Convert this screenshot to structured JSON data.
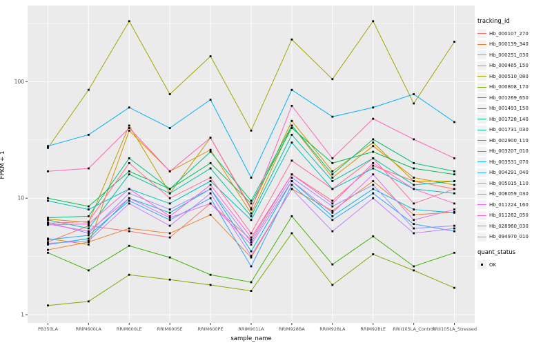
{
  "chart_data": {
    "type": "line",
    "title": "",
    "xlabel": "sample_name",
    "ylabel": "FPKM + 1",
    "y_scale": "log10",
    "ylim": [
      0.85,
      450
    ],
    "yticks": [
      1,
      10,
      100
    ],
    "minor_gridlines": [
      3.162,
      31.62,
      316.2
    ],
    "panel_bg": "#EBEBEB",
    "grid_color": "#FFFFFF",
    "point_color": "#000000",
    "legend_title": "tracking_id",
    "quant_status_title": "quant_status",
    "quant_status_items": [
      "OK"
    ],
    "categories": [
      "PB350LA",
      "RRIM600LA",
      "RRIM600LE",
      "RRIM600SE",
      "RRIM600PE",
      "RRIM901LA",
      "RRIM928BA",
      "RRIM928LA",
      "RRIM928LE",
      "RRII105LA_Control",
      "RRII105LA_Stressed"
    ],
    "series": [
      {
        "name": "Hb_000107_270",
        "color": "#F8766D",
        "values": [
          4.2,
          5.8,
          5.2,
          4.6,
          9.0,
          4.4,
          16,
          9.5,
          19,
          14,
          12
        ]
      },
      {
        "name": "Hb_000139_340",
        "color": "#EA8331",
        "values": [
          3.6,
          4.2,
          5.5,
          5.0,
          7.2,
          3.1,
          12,
          7.8,
          14,
          7.2,
          7.6
        ]
      },
      {
        "name": "Hb_000251_030",
        "color": "#D89000",
        "values": [
          4.5,
          4.0,
          38,
          17,
          26,
          7.4,
          42,
          15,
          28,
          15,
          13
        ]
      },
      {
        "name": "Hb_000465_150",
        "color": "#C09B00",
        "values": [
          6.6,
          6.2,
          42,
          11,
          33,
          8.2,
          46,
          17,
          30,
          14,
          14
        ]
      },
      {
        "name": "Hb_000510_080",
        "color": "#A3A500",
        "values": [
          27,
          85,
          330,
          78,
          165,
          38,
          230,
          105,
          330,
          65,
          220
        ]
      },
      {
        "name": "Hb_000808_170",
        "color": "#7CAE00",
        "values": [
          1.2,
          1.3,
          2.2,
          2.0,
          1.8,
          1.6,
          5.0,
          1.8,
          3.3,
          2.4,
          1.7
        ]
      },
      {
        "name": "Hb_001269_650",
        "color": "#39B600",
        "values": [
          3.4,
          2.4,
          3.9,
          3.1,
          2.2,
          1.9,
          7.0,
          2.7,
          4.7,
          2.6,
          3.4
        ]
      },
      {
        "name": "Hb_001493_150",
        "color": "#00BB4E",
        "values": [
          10,
          8.5,
          17,
          12,
          20,
          9.0,
          40,
          20,
          25,
          18,
          16
        ]
      },
      {
        "name": "Hb_001728_140",
        "color": "#00BF7D",
        "values": [
          6.8,
          7.0,
          22,
          12,
          25,
          9.5,
          42,
          16,
          32,
          20,
          17
        ]
      },
      {
        "name": "Hb_001731_030",
        "color": "#00C1A3",
        "values": [
          6.5,
          5.5,
          16,
          11,
          18,
          7.0,
          35,
          14,
          22,
          13,
          14
        ]
      },
      {
        "name": "Hb_002900_110",
        "color": "#00BFC4",
        "values": [
          9.5,
          8.0,
          12,
          9.0,
          14,
          6.5,
          30,
          12,
          18,
          12,
          11
        ]
      },
      {
        "name": "Hb_003207_010",
        "color": "#00BAE0",
        "values": [
          4.0,
          4.5,
          10,
          7.5,
          12,
          3.5,
          14,
          7.0,
          12,
          8.0,
          7.5
        ]
      },
      {
        "name": "Hb_003531_070",
        "color": "#00B0F6",
        "values": [
          28,
          35,
          60,
          40,
          70,
          15,
          85,
          50,
          60,
          78,
          45
        ]
      },
      {
        "name": "Hb_004291_040",
        "color": "#35A2FF",
        "values": [
          4.4,
          4.8,
          9.5,
          6.5,
          10,
          2.6,
          13,
          6.5,
          11,
          6.0,
          5.2
        ]
      },
      {
        "name": "Hb_005015_110",
        "color": "#9590FF",
        "values": [
          6.2,
          5.0,
          11,
          8.0,
          12,
          4.2,
          15,
          8.5,
          13,
          5.5,
          5.8
        ]
      },
      {
        "name": "Hb_006059_030",
        "color": "#C77CFF",
        "values": [
          4.1,
          4.3,
          9.0,
          5.8,
          11,
          3.2,
          12,
          5.2,
          10,
          5.0,
          5.5
        ]
      },
      {
        "name": "Hb_011224_160",
        "color": "#E76BF3",
        "values": [
          6.0,
          5.2,
          10,
          6.8,
          9.0,
          4.0,
          14,
          7.5,
          16,
          6.5,
          8.0
        ]
      },
      {
        "name": "Hb_011282_050",
        "color": "#FA62DB",
        "values": [
          5.9,
          6.0,
          12,
          7.0,
          13,
          4.6,
          16,
          9.0,
          20,
          12,
          9.0
        ]
      },
      {
        "name": "Hb_028960_030",
        "color": "#FF62BC",
        "values": [
          17,
          18,
          40,
          17,
          33,
          8.0,
          62,
          22,
          48,
          32,
          22
        ]
      },
      {
        "name": "Hb_094970_010",
        "color": "#FF6A98",
        "values": [
          6.1,
          6.3,
          20,
          10,
          15,
          5.0,
          21,
          12,
          22,
          9.0,
          12
        ]
      }
    ]
  }
}
